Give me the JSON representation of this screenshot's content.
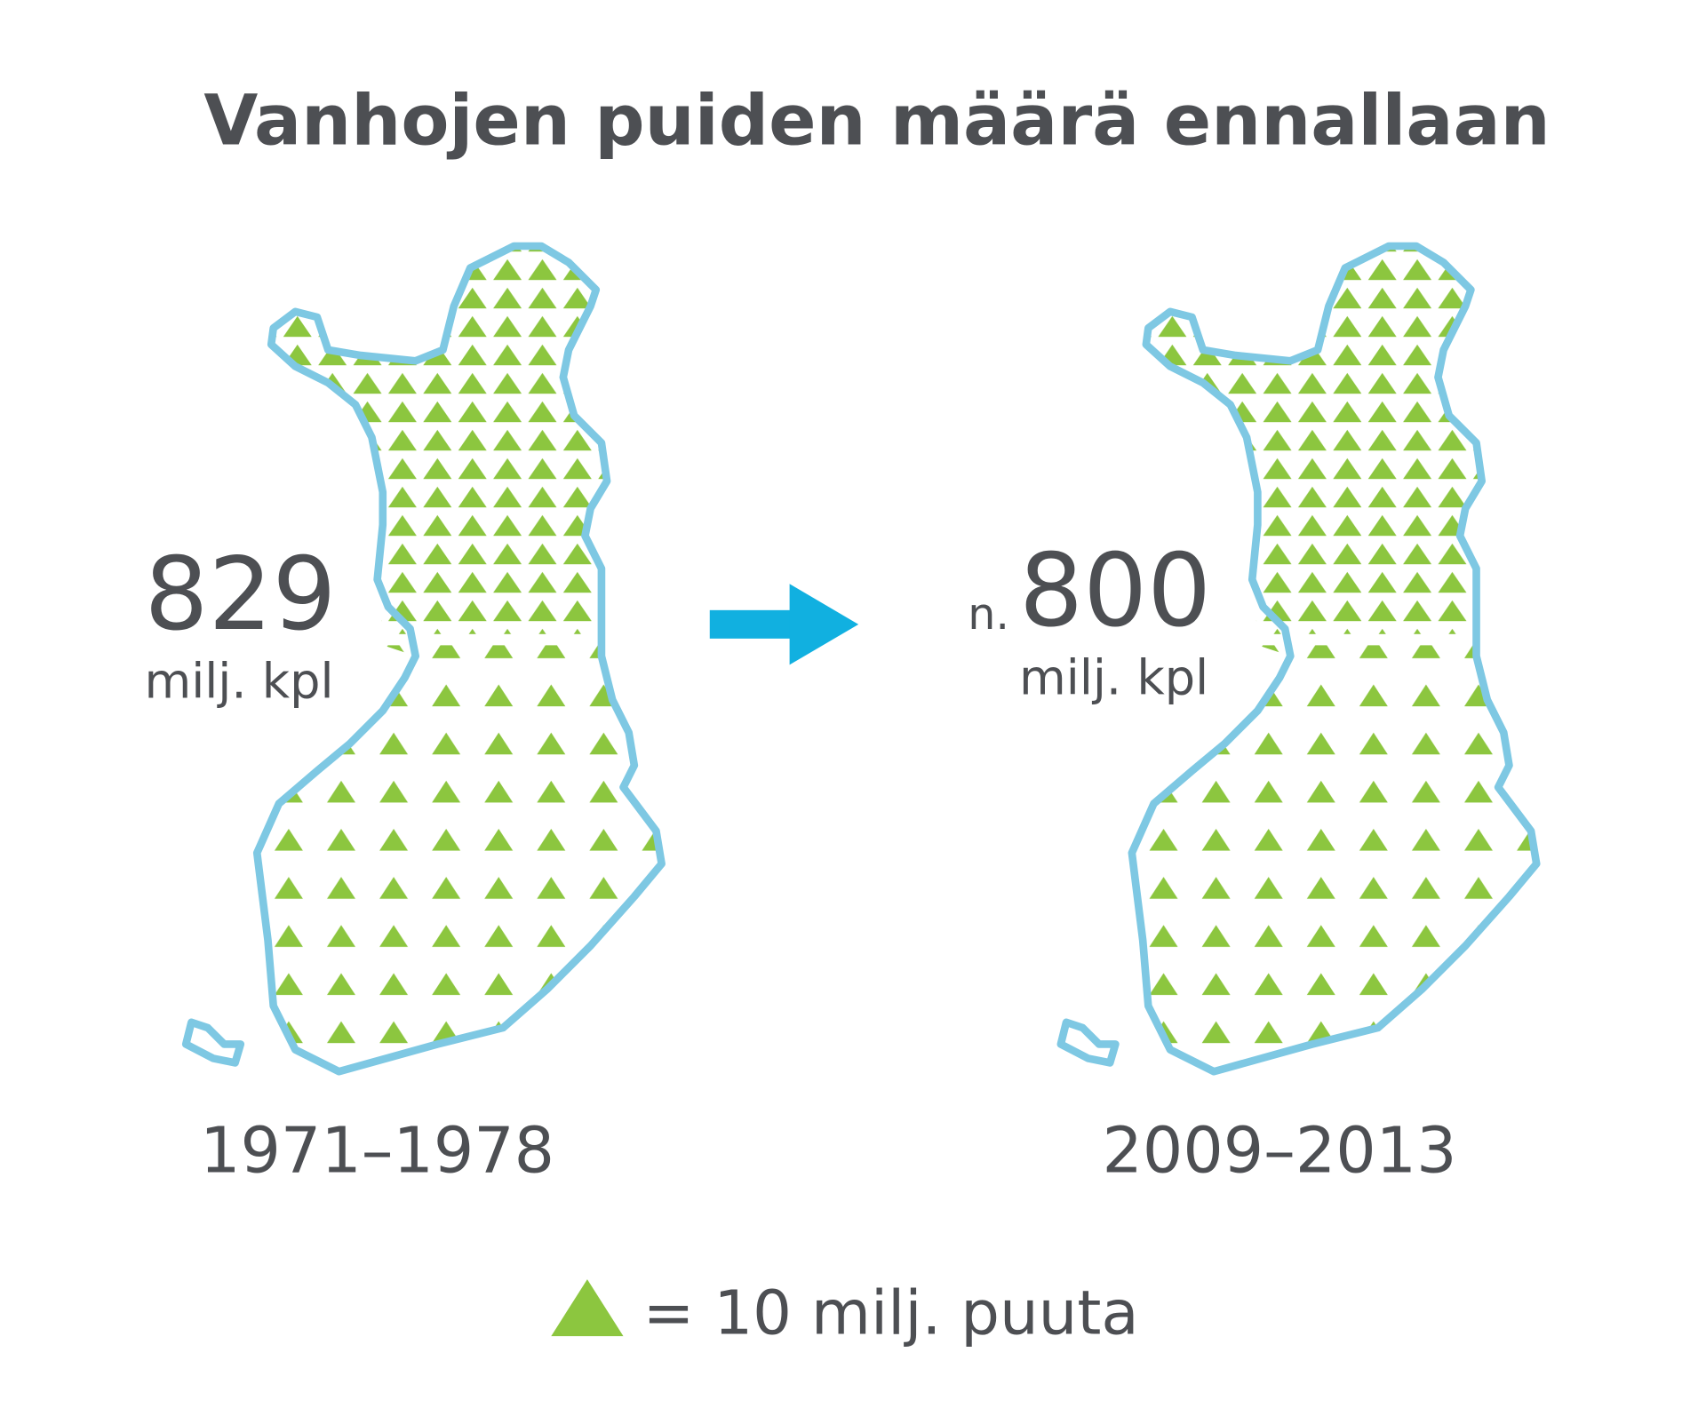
{
  "title": "Vanhojen puiden määrä ennallaan",
  "panels": [
    {
      "value": "829",
      "unit": "milj. kpl",
      "period": "1971–1978"
    },
    {
      "prefix": "n.",
      "value": "800",
      "unit": "milj. kpl",
      "period": "2009–2013"
    }
  ],
  "legend": "= 10 milj. puuta"
}
